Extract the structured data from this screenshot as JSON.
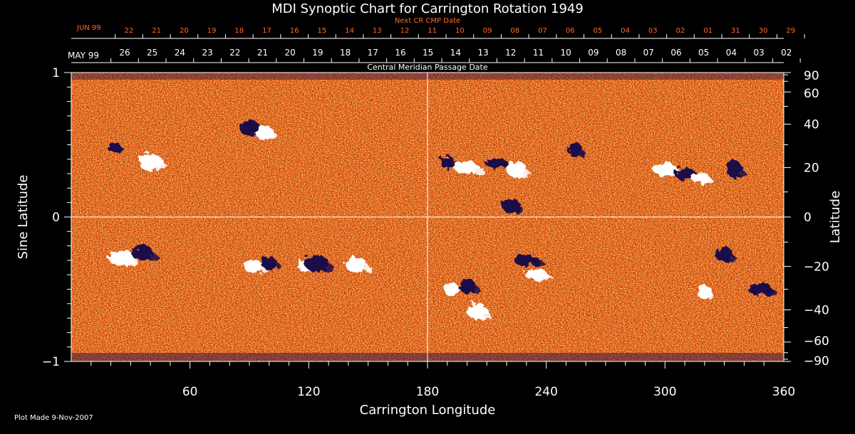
{
  "chart_data": {
    "type": "heatmap",
    "title": "MDI Synoptic Chart for Carrington Rotation 1949",
    "xlabel": "Carrington Longitude",
    "ylabel_left": "Sine Latitude",
    "ylabel_right": "Latitude",
    "xlim": [
      0,
      360
    ],
    "ylim": [
      -1,
      1
    ],
    "x_ticks": [
      "60",
      "120",
      "180",
      "240",
      "300",
      "360"
    ],
    "x_tick_values": [
      60,
      120,
      180,
      240,
      300,
      360
    ],
    "y_left_ticks": [
      "1",
      "0",
      "−1"
    ],
    "y_left_tick_values": [
      1,
      0,
      -1
    ],
    "y_right_ticks": [
      "90",
      "60",
      "40",
      "20",
      "0",
      "−20",
      "−40",
      "−60",
      "−90"
    ],
    "y_right_tick_values": [
      90,
      60,
      40,
      20,
      0,
      -20,
      -40,
      -60,
      -90
    ],
    "top_axis_next_cr": {
      "label": "Next CR CMP Date",
      "month_label": "JUN 99",
      "day_labels": [
        "22",
        "21",
        "20",
        "19",
        "18",
        "17",
        "16",
        "15",
        "14",
        "13",
        "12",
        "11",
        "10",
        "09",
        "08",
        "07",
        "06",
        "05",
        "04",
        "03",
        "02",
        "01",
        "31",
        "30",
        "29"
      ]
    },
    "top_axis_cmp": {
      "label": "Central Meridian Passage Date",
      "month_label": "MAY 99",
      "day_labels": [
        "26",
        "25",
        "24",
        "23",
        "22",
        "21",
        "20",
        "19",
        "18",
        "17",
        "16",
        "15",
        "14",
        "13",
        "12",
        "11",
        "10",
        "09",
        "08",
        "07",
        "06",
        "05",
        "04",
        "03",
        "02"
      ]
    },
    "guide_lines": {
      "vertical_longitude": 180,
      "horizontal_sine_latitude": 0
    },
    "colors": {
      "background": "#000000",
      "field_base": "#f06a14",
      "positive_polarity": "#ffffff",
      "negative_polarity": "#1a0a4a",
      "axis_text": "#ffffff",
      "top_axis_text": "#ff6a2a"
    },
    "active_regions": [
      {
        "lon": 22,
        "sinlat": 0.48,
        "polarity": "negative"
      },
      {
        "lon": 40,
        "sinlat": 0.38,
        "polarity": "positive"
      },
      {
        "lon": 90,
        "sinlat": 0.62,
        "polarity": "negative"
      },
      {
        "lon": 98,
        "sinlat": 0.58,
        "polarity": "positive"
      },
      {
        "lon": 190,
        "sinlat": 0.38,
        "polarity": "negative"
      },
      {
        "lon": 200,
        "sinlat": 0.34,
        "polarity": "positive"
      },
      {
        "lon": 215,
        "sinlat": 0.37,
        "polarity": "negative"
      },
      {
        "lon": 225,
        "sinlat": 0.33,
        "polarity": "positive"
      },
      {
        "lon": 222,
        "sinlat": 0.08,
        "polarity": "negative"
      },
      {
        "lon": 255,
        "sinlat": 0.46,
        "polarity": "negative"
      },
      {
        "lon": 300,
        "sinlat": 0.33,
        "polarity": "positive"
      },
      {
        "lon": 310,
        "sinlat": 0.3,
        "polarity": "negative"
      },
      {
        "lon": 318,
        "sinlat": 0.27,
        "polarity": "positive"
      },
      {
        "lon": 335,
        "sinlat": 0.33,
        "polarity": "negative"
      },
      {
        "lon": 25,
        "sinlat": -0.28,
        "polarity": "positive"
      },
      {
        "lon": 36,
        "sinlat": -0.25,
        "polarity": "negative"
      },
      {
        "lon": 92,
        "sinlat": -0.34,
        "polarity": "positive"
      },
      {
        "lon": 100,
        "sinlat": -0.32,
        "polarity": "negative"
      },
      {
        "lon": 118,
        "sinlat": -0.34,
        "polarity": "positive"
      },
      {
        "lon": 124,
        "sinlat": -0.32,
        "polarity": "negative"
      },
      {
        "lon": 144,
        "sinlat": -0.33,
        "polarity": "positive"
      },
      {
        "lon": 200,
        "sinlat": -0.48,
        "polarity": "negative"
      },
      {
        "lon": 192,
        "sinlat": -0.5,
        "polarity": "positive"
      },
      {
        "lon": 230,
        "sinlat": -0.3,
        "polarity": "negative"
      },
      {
        "lon": 235,
        "sinlat": -0.4,
        "polarity": "positive"
      },
      {
        "lon": 205,
        "sinlat": -0.65,
        "polarity": "positive"
      },
      {
        "lon": 330,
        "sinlat": -0.26,
        "polarity": "negative"
      },
      {
        "lon": 320,
        "sinlat": -0.52,
        "polarity": "positive"
      },
      {
        "lon": 348,
        "sinlat": -0.5,
        "polarity": "negative"
      }
    ]
  },
  "footer": {
    "plot_made": "Plot Made  9-Nov-2007"
  }
}
